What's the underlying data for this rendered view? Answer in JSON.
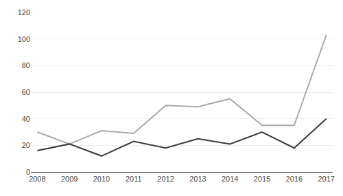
{
  "chart_data": {
    "type": "line",
    "x": [
      2008,
      2009,
      2010,
      2011,
      2012,
      2013,
      2014,
      2015,
      2016,
      2017
    ],
    "series": [
      {
        "color": "#aaaaaa",
        "values": [
          30,
          21,
          31,
          29,
          50,
          49,
          55,
          35,
          35,
          103
        ]
      },
      {
        "color": "#3a3a3a",
        "values": [
          16,
          21,
          12,
          23,
          18,
          25,
          21,
          30,
          18,
          40
        ]
      }
    ],
    "xlim": [
      2007.8,
      2017.2
    ],
    "xticks": [
      2008,
      2009,
      2010,
      2011,
      2012,
      2013,
      2014,
      2015,
      2016,
      2017
    ],
    "ylim": [
      0,
      120
    ],
    "yticks": [
      0,
      20,
      40,
      60,
      80,
      100,
      120
    ],
    "grid": "y"
  }
}
